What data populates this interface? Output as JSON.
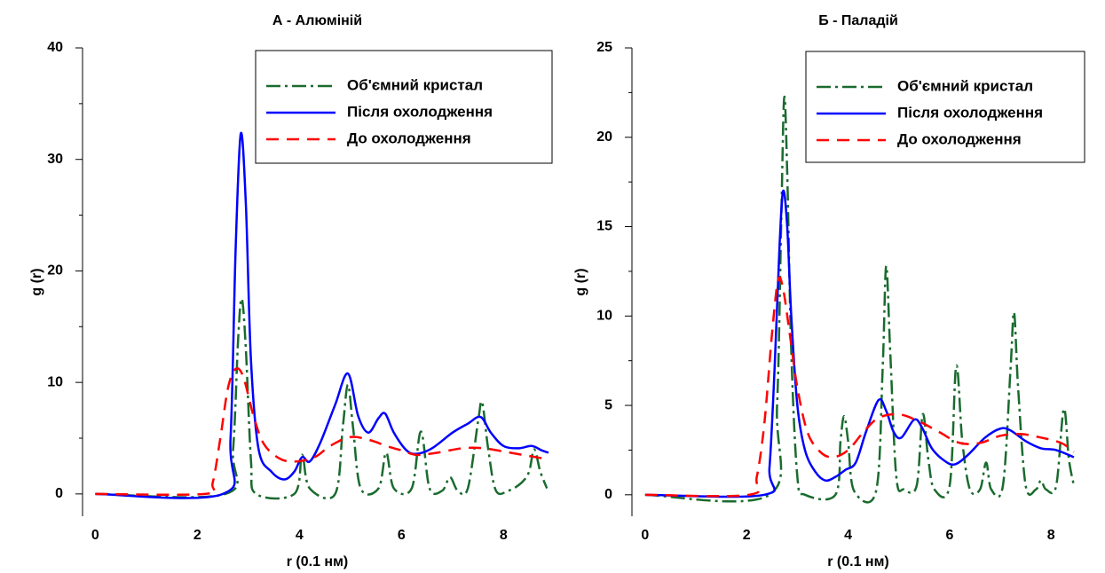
{
  "chart_data": [
    {
      "type": "line",
      "title": "А - Алюміній",
      "xlabel": "r (0.1 нм)",
      "ylabel": "g (r)",
      "xlim": [
        -0.25,
        8.95
      ],
      "ylim": [
        -2,
        40
      ],
      "xticks": [
        0,
        2,
        4,
        6,
        8
      ],
      "yticks": [
        0,
        10,
        20,
        30,
        40
      ],
      "yminorticks": [
        5,
        15,
        25,
        35
      ],
      "legend": "upper right",
      "series": [
        {
          "name": "Об'ємний кристал",
          "color": "#1a6b2e",
          "style": "dashdot",
          "x": [
            0,
            2.55,
            2.7,
            2.8,
            2.87,
            2.95,
            3.05,
            3.15,
            3.9,
            4.05,
            4.2,
            4.7,
            4.85,
            4.95,
            5.05,
            5.2,
            5.55,
            5.7,
            5.85,
            6.2,
            6.38,
            6.55,
            6.8,
            6.95,
            7.1,
            7.3,
            7.5,
            7.58,
            7.7,
            7.85,
            8.1,
            8.35,
            8.5,
            8.6,
            8.72,
            8.85
          ],
          "values": [
            0,
            0,
            4,
            14,
            17.5,
            13,
            3,
            0,
            0,
            3.5,
            0.5,
            0,
            6,
            9.8,
            6,
            0.5,
            0.5,
            3.7,
            0.5,
            0.5,
            5.6,
            0.5,
            0.3,
            1.5,
            0.3,
            0.5,
            6.5,
            8.2,
            4,
            0.3,
            0.3,
            1,
            2,
            4,
            2,
            0.5
          ]
        },
        {
          "name": "Після охолодження",
          "color": "#0000ff",
          "style": "solid",
          "x": [
            0,
            2.5,
            2.65,
            2.75,
            2.85,
            2.95,
            3.05,
            3.2,
            3.45,
            3.7,
            3.9,
            4.05,
            4.2,
            4.4,
            4.7,
            4.95,
            5.15,
            5.35,
            5.55,
            5.68,
            5.85,
            6.1,
            6.3,
            6.6,
            7,
            7.3,
            7.55,
            7.75,
            8,
            8.3,
            8.55,
            8.75,
            8.88
          ],
          "values": [
            0,
            0,
            5,
            22,
            32.3,
            26,
            12,
            4,
            2,
            1.3,
            2,
            3.3,
            2.9,
            4.5,
            8,
            10.8,
            7,
            5.5,
            6.8,
            7.2,
            5.5,
            3.9,
            3.6,
            4.1,
            5.5,
            6.3,
            6.9,
            5.5,
            4.3,
            4.1,
            4.3,
            3.9,
            3.7
          ]
        },
        {
          "name": "До охолодження",
          "color": "#ff0000",
          "style": "dashed",
          "x": [
            0,
            2.15,
            2.3,
            2.45,
            2.6,
            2.75,
            2.9,
            3.1,
            3.3,
            3.6,
            3.9,
            4.3,
            4.6,
            5,
            5.4,
            5.7,
            6,
            6.3,
            6.7,
            7.2,
            7.6,
            8,
            8.5,
            8.88
          ],
          "values": [
            0,
            0,
            1,
            5,
            9.5,
            11.2,
            10.5,
            7,
            4.5,
            3.2,
            2.9,
            3.3,
            4.3,
            5.1,
            4.8,
            4.3,
            3.9,
            3.5,
            3.7,
            4.1,
            4.1,
            3.8,
            3.4,
            3.1
          ]
        }
      ]
    },
    {
      "type": "line",
      "title": "Б - Паладій",
      "xlabel": "r (0.1 нм)",
      "ylabel": "g (r)",
      "xlim": [
        -0.26,
        8.66
      ],
      "ylim": [
        -1.2,
        25
      ],
      "xticks": [
        0,
        2,
        4,
        6,
        8
      ],
      "yticks": [
        0,
        5,
        10,
        15,
        20,
        25
      ],
      "yminorticks": [
        2.5,
        7.5,
        12.5,
        17.5,
        22.5
      ],
      "legend": "upper right",
      "series": [
        {
          "name": "Об'ємний кристал",
          "color": "#1a6b2e",
          "style": "dashdot",
          "x": [
            0,
            2.45,
            2.6,
            2.68,
            2.74,
            2.8,
            2.88,
            3,
            3.15,
            3.75,
            3.85,
            3.92,
            4,
            4.12,
            4.55,
            4.68,
            4.75,
            4.83,
            4.95,
            5.1,
            5.35,
            5.47,
            5.58,
            5.7,
            6,
            6.13,
            6.25,
            6.4,
            6.6,
            6.72,
            6.82,
            7.05,
            7.2,
            7.27,
            7.35,
            7.5,
            7.7,
            7.8,
            7.9,
            8.1,
            8.25,
            8.35,
            8.45
          ],
          "values": [
            0,
            0,
            5,
            15,
            22.2,
            18,
            8,
            1,
            0,
            0,
            3,
            4.4,
            3,
            0.2,
            0.2,
            7,
            12.8,
            8,
            1,
            0.3,
            0.5,
            4.5,
            2,
            0.3,
            0.5,
            7.2,
            3,
            0.3,
            0.3,
            1.8,
            0.3,
            0.5,
            7,
            10.2,
            6,
            0.5,
            0.3,
            0.8,
            0.3,
            0.5,
            4.8,
            2,
            0.5
          ]
        },
        {
          "name": "Після охолодження",
          "color": "#0000ff",
          "style": "solid",
          "x": [
            0,
            2.35,
            2.45,
            2.55,
            2.65,
            2.72,
            2.8,
            2.88,
            3,
            3.15,
            3.35,
            3.55,
            3.75,
            3.95,
            4.15,
            4.35,
            4.6,
            4.75,
            4.9,
            5.05,
            5.3,
            5.45,
            5.65,
            5.9,
            6.1,
            6.35,
            6.7,
            7,
            7.2,
            7.5,
            7.8,
            8.1,
            8.45
          ],
          "values": [
            0,
            0,
            1.5,
            7,
            14,
            17,
            15,
            10,
            5,
            2.5,
            1.3,
            0.8,
            1,
            1.4,
            1.8,
            3.5,
            5.3,
            4.7,
            3.5,
            3.2,
            4.2,
            3.8,
            2.6,
            1.9,
            1.7,
            2.2,
            3.2,
            3.7,
            3.6,
            3,
            2.6,
            2.5,
            2.1
          ]
        },
        {
          "name": "До охолодження",
          "color": "#ff0000",
          "style": "dashed",
          "x": [
            0,
            2.05,
            2.2,
            2.35,
            2.5,
            2.62,
            2.72,
            2.85,
            3,
            3.2,
            3.45,
            3.7,
            4,
            4.3,
            4.6,
            5,
            5.4,
            5.8,
            6.2,
            6.6,
            7,
            7.4,
            7.8,
            8.2,
            8.45
          ],
          "values": [
            0,
            0,
            1,
            4,
            9,
            12,
            11.5,
            9,
            6,
            3.5,
            2.4,
            2.1,
            2.5,
            3.5,
            4.3,
            4.5,
            4.1,
            3.5,
            2.9,
            2.9,
            3.3,
            3.4,
            3.2,
            2.9,
            2.4
          ]
        }
      ]
    }
  ]
}
